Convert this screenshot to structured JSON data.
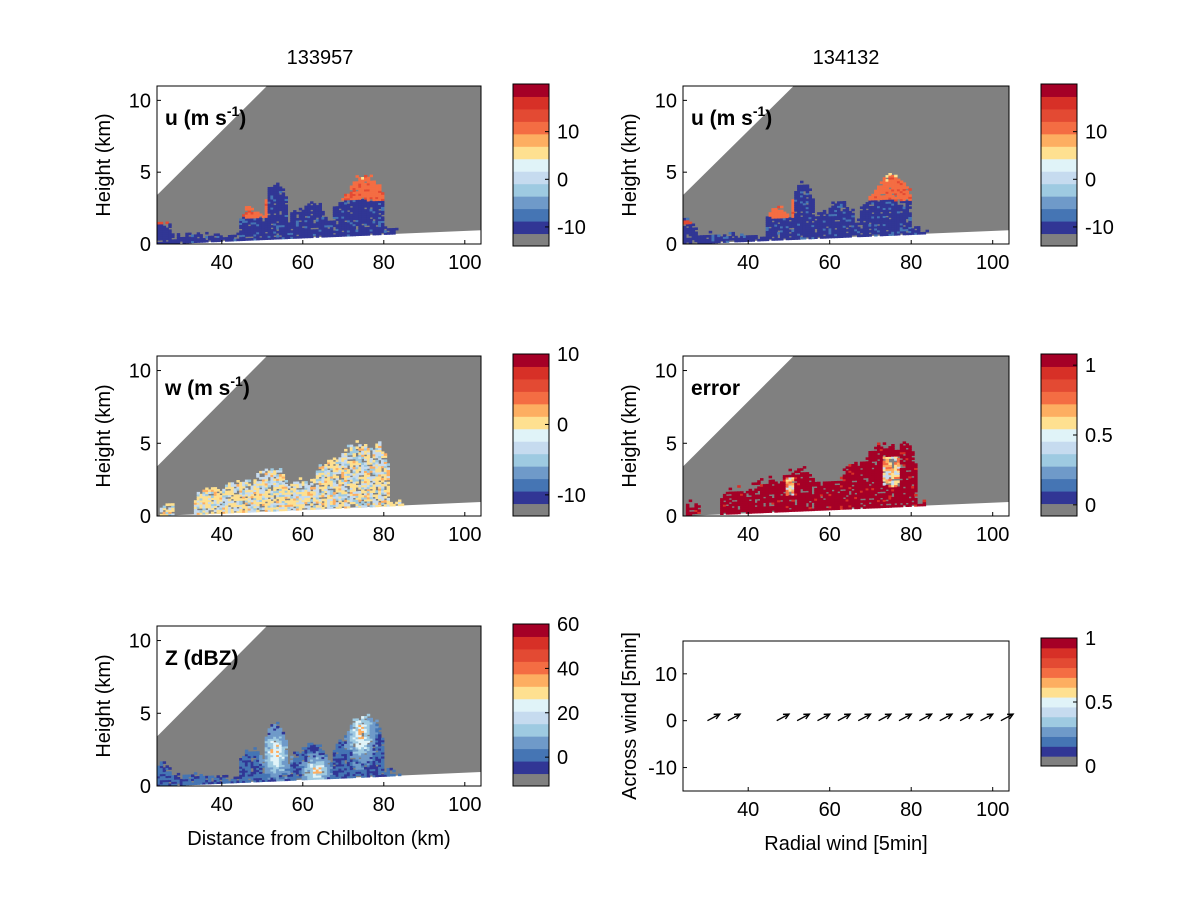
{
  "column_titles": [
    "133957",
    "134132"
  ],
  "colormap": [
    "#313695",
    "#4575b4",
    "#6f9ac9",
    "#9ecae1",
    "#c6dbef",
    "#e0f3f8",
    "#fee090",
    "#fdae61",
    "#f46d43",
    "#e34a33",
    "#d73027",
    "#a50026"
  ],
  "missing_color": "#808080",
  "chart_data": [
    {
      "type": "heatmap",
      "panel": "u-133957",
      "annotation": "u (m s",
      "annotation_sup": "-1",
      "annotation_close": ")",
      "xlabel": "",
      "ylabel": "Height (km)",
      "xlim": [
        24,
        104
      ],
      "ylim": [
        0,
        11
      ],
      "xticks": [
        "40",
        "60",
        "80",
        "100"
      ],
      "yticks": [
        "0",
        "5",
        "10"
      ],
      "colorbar": {
        "range": [
          -14,
          20
        ],
        "ticks": [
          "-10",
          "0",
          "10"
        ]
      }
    },
    {
      "type": "heatmap",
      "panel": "u-134132",
      "annotation": "u (m s",
      "annotation_sup": "-1",
      "annotation_close": ")",
      "xlabel": "",
      "ylabel": "Height (km)",
      "xlim": [
        24,
        104
      ],
      "ylim": [
        0,
        11
      ],
      "xticks": [
        "40",
        "60",
        "80",
        "100"
      ],
      "yticks": [
        "0",
        "5",
        "10"
      ],
      "colorbar": {
        "range": [
          -14,
          20
        ],
        "ticks": [
          "-10",
          "0",
          "10"
        ]
      }
    },
    {
      "type": "heatmap",
      "panel": "w-133957",
      "annotation": "w (m s",
      "annotation_sup": "-1",
      "annotation_close": ")",
      "xlabel": "",
      "ylabel": "Height (km)",
      "xlim": [
        24,
        104
      ],
      "ylim": [
        0,
        11
      ],
      "xticks": [
        "40",
        "60",
        "80",
        "100"
      ],
      "yticks": [
        "0",
        "5",
        "10"
      ],
      "colorbar": {
        "range": [
          -13,
          10
        ],
        "ticks": [
          "-10",
          "0",
          "10"
        ]
      }
    },
    {
      "type": "heatmap",
      "panel": "error-134132",
      "annotation": "error",
      "annotation_sup": "",
      "annotation_close": "",
      "xlabel": "",
      "ylabel": "Height (km)",
      "xlim": [
        24,
        104
      ],
      "ylim": [
        0,
        11
      ],
      "xticks": [
        "40",
        "60",
        "80",
        "100"
      ],
      "yticks": [
        "0",
        "5",
        "10"
      ],
      "colorbar": {
        "range": [
          -0.08,
          1.08
        ],
        "ticks": [
          "0",
          "0.5",
          "1"
        ]
      }
    },
    {
      "type": "heatmap",
      "panel": "Z-133957",
      "annotation": "Z (dBZ)",
      "annotation_sup": "",
      "annotation_close": "",
      "xlabel": "Distance from Chilbolton (km)",
      "ylabel": "Height (km)",
      "xlim": [
        24,
        104
      ],
      "ylim": [
        0,
        11
      ],
      "xticks": [
        "40",
        "60",
        "80",
        "100"
      ],
      "yticks": [
        "0",
        "5",
        "10"
      ],
      "colorbar": {
        "range": [
          -13,
          60
        ],
        "ticks": [
          "0",
          "20",
          "40",
          "60"
        ]
      }
    },
    {
      "type": "scatter",
      "panel": "wind-vectors",
      "annotation": "",
      "annotation_sup": "",
      "annotation_close": "",
      "xlabel": "Radial wind [5min]",
      "ylabel": "Across wind [5min]",
      "xlim": [
        24,
        104
      ],
      "ylim": [
        -15,
        17
      ],
      "xticks": [
        "40",
        "60",
        "80",
        "100"
      ],
      "yticks": [
        "-10",
        "0",
        "10"
      ],
      "x": [
        30,
        35,
        47,
        52,
        57,
        62,
        67,
        72,
        77,
        82,
        87,
        92,
        97,
        102
      ],
      "y": [
        0,
        0,
        0,
        0,
        0,
        0,
        0,
        0,
        0,
        0,
        0,
        0,
        0,
        0
      ],
      "u": [
        3,
        3,
        3,
        3,
        3,
        3,
        3,
        3,
        3,
        3,
        3,
        3,
        3,
        3
      ],
      "v": [
        1.4,
        1.4,
        1.4,
        1.4,
        1.4,
        1.4,
        1.4,
        1.4,
        1.4,
        1.4,
        1.4,
        1.4,
        1.4,
        1.4
      ],
      "colorbar": {
        "range": [
          0,
          1
        ],
        "ticks": [
          "0",
          "0.5",
          "1"
        ]
      }
    }
  ]
}
